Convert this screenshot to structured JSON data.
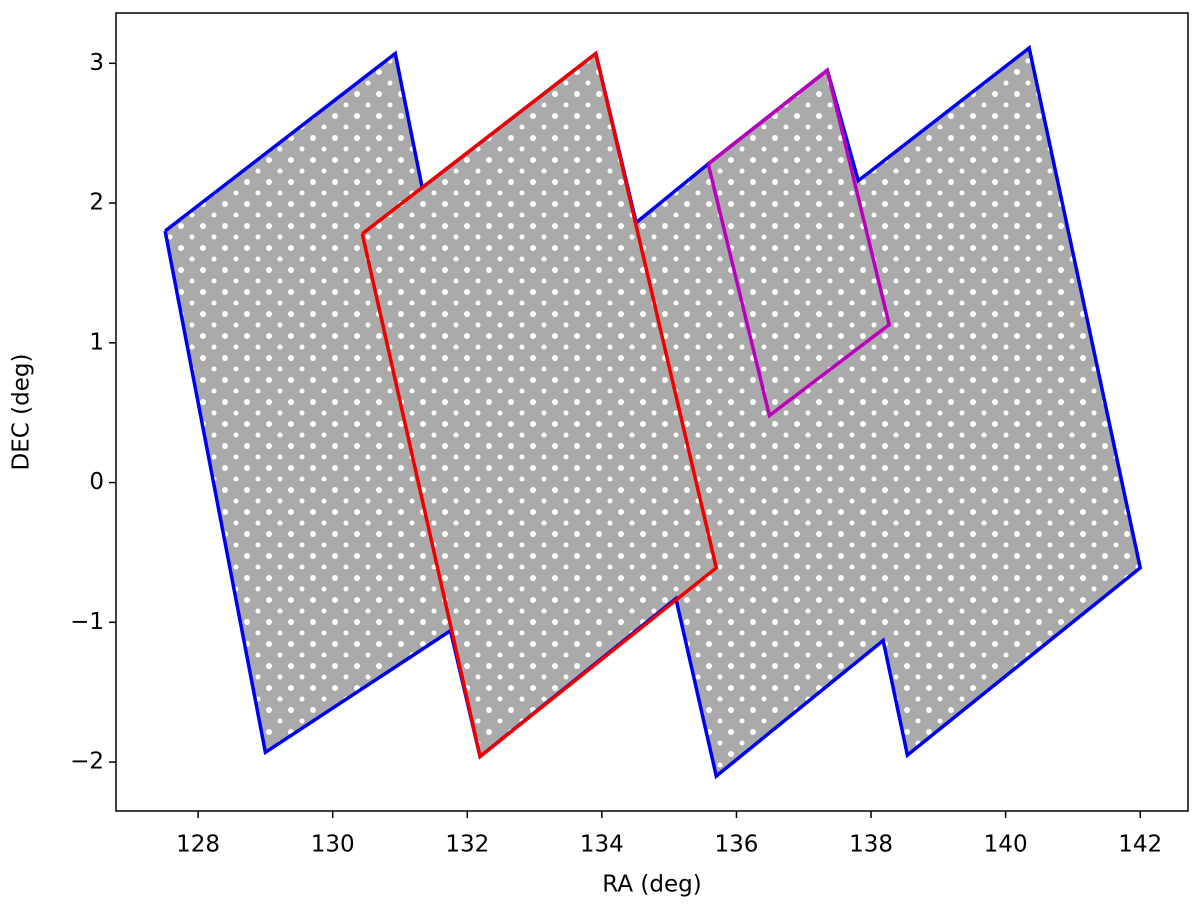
{
  "chart_data": {
    "type": "line",
    "x_label": "RA (deg)",
    "y_label": "DEC (deg)",
    "xlim": [
      126.78,
      142.71
    ],
    "ylim": [
      -2.35,
      3.36
    ],
    "xticks": [
      128,
      130,
      132,
      134,
      136,
      138,
      140,
      142
    ],
    "yticks": [
      {
        "value": -2,
        "label": "−2"
      },
      {
        "value": -1,
        "label": "−1"
      },
      0,
      1,
      2,
      3
    ],
    "grid": false,
    "series": [
      {
        "color": "#0000ee",
        "fill": "#aaaaaa",
        "x": [
          127.51,
          130.93,
          131.33,
          133.91,
          134.51,
          135.58,
          137.35,
          137.81,
          140.35,
          142.0,
          138.54,
          138.18,
          135.7,
          135.1,
          132.19,
          131.75,
          129.0,
          127.51
        ],
        "y": [
          1.8,
          3.07,
          2.11,
          3.07,
          1.86,
          2.28,
          2.95,
          2.16,
          3.11,
          -0.61,
          -1.95,
          -1.13,
          -2.1,
          -0.83,
          -1.96,
          -1.06,
          -1.93,
          1.8
        ]
      },
      {
        "color": "#ee0000",
        "x": [
          130.44,
          133.91,
          135.7,
          132.19,
          130.44
        ],
        "y": [
          1.78,
          3.07,
          -0.61,
          -1.96,
          1.78
        ]
      },
      {
        "color": "#bb00bb",
        "x": [
          135.58,
          137.35,
          138.27,
          136.49,
          135.58
        ],
        "y": [
          2.28,
          2.95,
          1.13,
          0.48,
          2.28
        ]
      }
    ]
  }
}
